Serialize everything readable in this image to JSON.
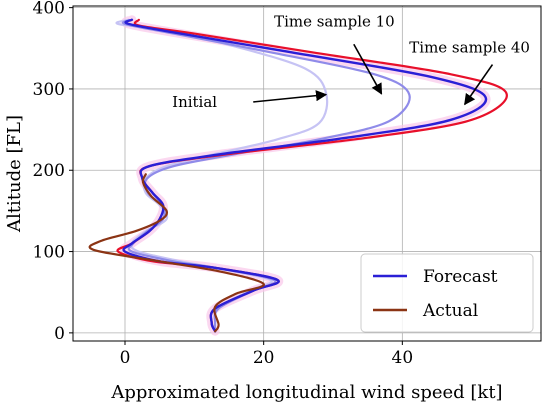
{
  "chart_data": {
    "type": "line",
    "xlabel": "Approximated longitudinal wind speed [kt]",
    "ylabel": "Altitude [FL]",
    "xlim": [
      -7.5,
      60
    ],
    "ylim": [
      -10,
      402
    ],
    "xticks": [
      0,
      20,
      40
    ],
    "yticks": [
      0,
      100,
      200,
      300,
      400
    ],
    "grid": true,
    "legend_position": "bottom-right",
    "legend": [
      {
        "name": "Forecast",
        "color": "#2a1fd6"
      },
      {
        "name": "Actual",
        "color": "#8b3414"
      }
    ],
    "colors": {
      "initial": "#c6c3f4",
      "sample10": "#8f8be9",
      "forecast": "#2a1fd6",
      "sample40": "#e8102a",
      "actual": "#8b3414",
      "pink_band": "#f9c8e9"
    },
    "series": [
      {
        "key": "initial",
        "x": [
          13,
          13,
          13.5,
          18,
          21,
          13,
          8,
          2,
          1,
          3,
          6,
          5,
          3,
          3,
          6,
          13,
          22,
          28,
          29,
          26,
          16,
          6,
          -1,
          0.5
        ],
        "y": [
          2,
          12,
          30,
          52,
          65,
          80,
          88,
          100,
          110,
          125,
          140,
          157,
          172,
          190,
          205,
          220,
          238,
          258,
          295,
          325,
          352,
          372,
          380,
          385
        ]
      },
      {
        "key": "sample10",
        "x": [
          13,
          13,
          13.5,
          18.5,
          21.5,
          13,
          7,
          1,
          1.2,
          3.2,
          5.5,
          5.3,
          3.3,
          3.2,
          7,
          16,
          28,
          38,
          41,
          36,
          21,
          7,
          0,
          1
        ],
        "y": [
          2,
          12,
          30,
          52,
          65,
          80,
          88,
          100,
          110,
          125,
          140,
          157,
          172,
          190,
          205,
          220,
          238,
          260,
          293,
          318,
          345,
          368,
          380,
          385
        ]
      },
      {
        "key": "forecast",
        "x": [
          13,
          12.5,
          13,
          18.5,
          22,
          13,
          5,
          0,
          1,
          3.5,
          5,
          5.5,
          4,
          2.5,
          3.5,
          14,
          32,
          47,
          52,
          44,
          24,
          8,
          0.5,
          1
        ],
        "y": [
          2,
          12,
          30,
          52,
          65,
          80,
          88,
          100,
          110,
          125,
          140,
          157,
          172,
          190,
          205,
          220,
          240,
          262,
          290,
          315,
          345,
          368,
          380,
          385
        ]
      },
      {
        "key": "sample40",
        "x": [
          13,
          12.5,
          13,
          18.5,
          22,
          13,
          4,
          -1,
          1,
          3.5,
          5,
          5.5,
          4,
          2.5,
          3.5,
          15,
          35,
          50,
          55,
          47,
          27,
          10,
          2,
          2
        ],
        "y": [
          2,
          12,
          30,
          52,
          65,
          80,
          88,
          100,
          110,
          125,
          140,
          157,
          172,
          190,
          205,
          220,
          240,
          262,
          295,
          318,
          345,
          368,
          378,
          385
        ]
      },
      {
        "key": "actual",
        "x": [
          13,
          13.5,
          13,
          16,
          20,
          14,
          5,
          -4.5,
          -3.5,
          1.5,
          5,
          6,
          3.8,
          2.6,
          3
        ],
        "y": [
          2,
          10,
          32,
          48,
          60,
          75,
          88,
          102,
          113,
          125,
          138,
          150,
          168,
          185,
          195
        ]
      }
    ],
    "annotations": [
      {
        "text": "Initial",
        "text_pos": [
          6.8,
          278
        ],
        "arrow_tail": [
          18.5,
          284
        ],
        "arrow_head": [
          29,
          293
        ]
      },
      {
        "text": "Time sample 10",
        "text_pos": [
          21.5,
          377
        ],
        "arrow_tail": [
          33,
          355
        ],
        "arrow_head": [
          37,
          294
        ]
      },
      {
        "text": "Time sample 40",
        "text_pos": [
          41,
          345
        ],
        "arrow_tail": [
          53,
          330
        ],
        "arrow_head": [
          49,
          281
        ]
      }
    ]
  }
}
